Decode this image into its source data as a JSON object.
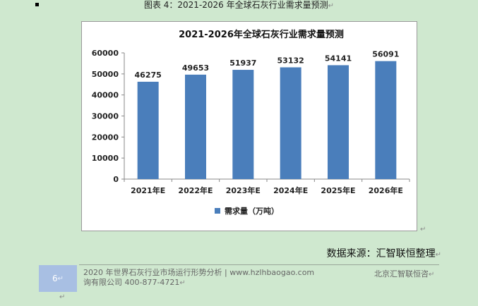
{
  "caption": {
    "text": "图表 4：2021-2026 年全球石灰行业需求量预测",
    "para_mark": "↵"
  },
  "chart_data": {
    "type": "bar",
    "title": "2021-2026年全球石灰行业需求量预测",
    "categories": [
      "2021年E",
      "2022年E",
      "2023年E",
      "2024年E",
      "2025年E",
      "2026年E"
    ],
    "series": [
      {
        "name": "需求量（万吨）",
        "values": [
          46275,
          49653,
          51937,
          53132,
          54141,
          56091
        ]
      }
    ],
    "ylim": [
      0,
      60000
    ],
    "yticks": [
      0,
      10000,
      20000,
      30000,
      40000,
      50000,
      60000
    ],
    "show_data_labels": true,
    "grid": false,
    "legend": "bottom",
    "bar_color": "#4a7ebb"
  },
  "source": {
    "text": "数据来源：汇智联恒整理",
    "para_mark": "↵"
  },
  "footer": {
    "page_number": "6",
    "title_line1": "2020 年世界石灰行业市场运行形势分析 | www.hzlhbaogao.com",
    "title_line2": "询有限公司  400-877-4721",
    "company": "北京汇智联恒咨",
    "para_mark": "↵"
  }
}
